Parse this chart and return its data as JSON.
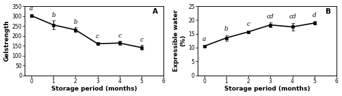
{
  "chart_A": {
    "x": [
      0,
      1,
      2,
      3,
      4,
      5
    ],
    "y": [
      302,
      255,
      230,
      160,
      163,
      140
    ],
    "yerr": [
      8,
      22,
      12,
      8,
      10,
      12
    ],
    "labels": [
      "a",
      "b",
      "b",
      "c",
      "c",
      "c"
    ],
    "label_offsets": [
      12,
      12,
      12,
      12,
      12,
      12
    ],
    "ylabel": "Gelstrength",
    "xlabel": "Storage period (months)",
    "panel_label": "A",
    "xlim": [
      -0.3,
      6
    ],
    "ylim": [
      0,
      350
    ],
    "yticks": [
      0,
      50,
      100,
      150,
      200,
      250,
      300,
      350
    ]
  },
  "chart_B": {
    "x": [
      0,
      1,
      2,
      3,
      4,
      5
    ],
    "y": [
      10.5,
      13.5,
      15.7,
      18.2,
      17.5,
      18.9
    ],
    "yerr": [
      0.3,
      1.0,
      0.4,
      0.8,
      1.3,
      0.6
    ],
    "labels": [
      "a",
      "b",
      "c",
      "cd",
      "cd",
      "d"
    ],
    "label_offsets": [
      1.2,
      1.2,
      1.2,
      1.2,
      1.2,
      1.2
    ],
    "ylabel": "Expressible water\n(%)",
    "xlabel": "Storage period (months)",
    "panel_label": "B",
    "xlim": [
      -0.3,
      6
    ],
    "ylim": [
      0,
      25
    ],
    "yticks": [
      0,
      5,
      10,
      15,
      20,
      25
    ]
  },
  "line_color": "#000000",
  "marker": "s",
  "markersize": 3.5,
  "linewidth": 1.2,
  "label_fontsize": 6.5,
  "axis_label_fontsize": 6.5,
  "tick_fontsize": 5.5,
  "panel_label_fontsize": 7.5
}
